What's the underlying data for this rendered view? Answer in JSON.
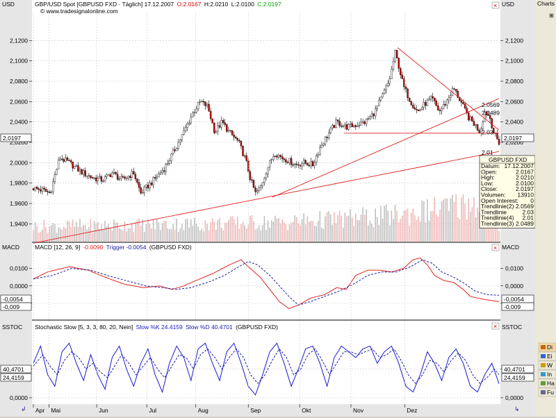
{
  "colors": {
    "up_candle": "#ffffff",
    "down_candle": "#cc0000",
    "candle_outline": "#000000",
    "trendline": "#e02020",
    "volume_up": "#c0c0c0",
    "volume_down": "#f0b8b8",
    "macd_line": "#e02020",
    "macd_trigger": "#1a1aa0",
    "stoch_k": "#1a1ad0",
    "stoch_d": "#1a1aa0",
    "open_color": "#cc0000",
    "close_color": "#00a000"
  },
  "header": {
    "main_title": "GBP/USD Spot [GBPUSD FXD · Täglich] 17.12.2007",
    "open_text": "O:2.0167",
    "high_text": "H:2.0210",
    "low_text": "L:2.0100",
    "close_text": "C:2.0197",
    "copyright": "© www.tradesignalonline.com",
    "axis_label": "USD"
  },
  "macd_header": {
    "label": "MACD",
    "text": "MACD [12, 26, 9]",
    "value_text": "-0.0090",
    "trigger_text": "Trigger -0.0054",
    "source_text": "(GBPUSD FXD)"
  },
  "stoch_header": {
    "label": "SSTOC",
    "text": "Stochastic Slow [5, 3, 3, 80, 20, Nein]",
    "k_text": "Slow %K 24.4159",
    "d_text": "Slow %D 40.4701",
    "source_text": "(GBPUSD FXD)"
  },
  "sidebar": {
    "title": "Charts",
    "tree_toggle": "⊞",
    "items": [
      "Di",
      "Ei",
      "W",
      "In",
      "Ha",
      "Fu"
    ]
  },
  "tags": {
    "price_last": "2,0197",
    "macd_trigger": "-0,0054",
    "macd_value": "-0,009",
    "stoch_d": "40,4701",
    "stoch_k": "24,4159"
  },
  "info_box": {
    "title": "GBPUSD FXD",
    "rows": [
      {
        "label": "Datum:",
        "value": "17.12.2007"
      },
      {
        "label": "Open:",
        "value": "2.0167"
      },
      {
        "label": "High:",
        "value": "2.0210"
      },
      {
        "label": "Low:",
        "value": "2.0100"
      },
      {
        "label": "Close:",
        "value": "2.0197"
      },
      {
        "label": "Volumen:",
        "value": "13910"
      },
      {
        "label": "Open Interest:",
        "value": "0"
      },
      {
        "label": "Trendlinie(2)",
        "value": "2.0569"
      },
      {
        "label": "Trendlinie",
        "value": "2.03"
      },
      {
        "label": "Trendlinie(4)",
        "value": "2.01"
      },
      {
        "label": "Trendlinie(3)",
        "value": "2.0489"
      }
    ]
  },
  "line_labels": [
    {
      "text": "2.0569",
      "value": 2.0569
    },
    {
      "text": "2.0489",
      "value": 2.0489
    },
    {
      "text": "2.03",
      "value": 2.03
    },
    {
      "text": "2.01",
      "value": 2.01
    }
  ],
  "chart_data": {
    "type": "candlestick",
    "x_months": [
      "Apr",
      "Mai",
      "Jun",
      "Jul",
      "Aug",
      "Sep",
      "Okt",
      "Nov",
      "Dez"
    ],
    "price_ticks": [
      "2,1200",
      "2,1000",
      "2,0800",
      "2,0600",
      "2,0400",
      "2,0200",
      "2,0000",
      "1,9800",
      "1,9600",
      "1,9400"
    ],
    "price_tick_values": [
      2.12,
      2.1,
      2.08,
      2.06,
      2.04,
      2.02,
      2.0,
      1.98,
      1.96,
      1.94
    ],
    "price_ylim": [
      1.9225,
      2.1475
    ],
    "price_anchors": [
      [
        0,
        1.975
      ],
      [
        8,
        1.973
      ],
      [
        14,
        1.97
      ],
      [
        22,
        2.005
      ],
      [
        30,
        2.0
      ],
      [
        40,
        1.991
      ],
      [
        50,
        1.985
      ],
      [
        58,
        1.983
      ],
      [
        66,
        1.99
      ],
      [
        74,
        1.983
      ],
      [
        84,
        1.99
      ],
      [
        90,
        1.97
      ],
      [
        100,
        1.982
      ],
      [
        110,
        1.995
      ],
      [
        118,
        2.012
      ],
      [
        126,
        2.03
      ],
      [
        134,
        2.05
      ],
      [
        140,
        2.06
      ],
      [
        146,
        2.055
      ],
      [
        152,
        2.03
      ],
      [
        158,
        2.04
      ],
      [
        164,
        2.03
      ],
      [
        172,
        2.02
      ],
      [
        178,
        2.002
      ],
      [
        182,
        1.983
      ],
      [
        186,
        1.97
      ],
      [
        190,
        1.975
      ],
      [
        196,
        1.995
      ],
      [
        202,
        2.01
      ],
      [
        208,
        2.005
      ],
      [
        214,
        2.002
      ],
      [
        220,
        1.998
      ],
      [
        226,
        2.0
      ],
      [
        234,
        1.998
      ],
      [
        240,
        2.015
      ],
      [
        248,
        2.03
      ],
      [
        254,
        2.04
      ],
      [
        262,
        2.035
      ],
      [
        270,
        2.037
      ],
      [
        278,
        2.04
      ],
      [
        286,
        2.05
      ],
      [
        294,
        2.07
      ],
      [
        298,
        2.08
      ],
      [
        303,
        2.108
      ],
      [
        306,
        2.095
      ],
      [
        310,
        2.075
      ],
      [
        316,
        2.06
      ],
      [
        322,
        2.05
      ],
      [
        328,
        2.058
      ],
      [
        334,
        2.063
      ],
      [
        340,
        2.05
      ],
      [
        346,
        2.06
      ],
      [
        352,
        2.073
      ],
      [
        358,
        2.06
      ],
      [
        364,
        2.045
      ],
      [
        370,
        2.037
      ],
      [
        374,
        2.03
      ],
      [
        378,
        2.05
      ],
      [
        382,
        2.046
      ],
      [
        386,
        2.028
      ],
      [
        390,
        2.0197
      ]
    ],
    "volume_ylim": [
      0,
      50000
    ],
    "volume_anchors": [
      [
        0,
        14000
      ],
      [
        60,
        15000
      ],
      [
        120,
        16000
      ],
      [
        170,
        17000
      ],
      [
        210,
        18000
      ],
      [
        260,
        21000
      ],
      [
        300,
        24000
      ],
      [
        340,
        30000
      ],
      [
        375,
        37000
      ],
      [
        390,
        14000
      ]
    ],
    "trendlines": [
      {
        "from": [
          0,
          1.921
        ],
        "to": [
          390,
          2.011
        ]
      },
      {
        "from": [
          200,
          1.966
        ],
        "to": [
          390,
          2.063
        ]
      },
      {
        "from": [
          260,
          2.029
        ],
        "to": [
          390,
          2.029
        ]
      },
      {
        "from": [
          305,
          2.113
        ],
        "to": [
          390,
          2.032
        ]
      }
    ],
    "macd": {
      "ticks": [
        "0,0100",
        "0,0000",
        "-0,0100"
      ],
      "tick_values": [
        0.01,
        0.0,
        -0.01
      ],
      "ylim": [
        -0.0192,
        0.0198
      ],
      "value_anchors": [
        [
          0,
          0.004
        ],
        [
          12,
          0.008
        ],
        [
          30,
          0.011
        ],
        [
          46,
          0.009
        ],
        [
          60,
          0.005
        ],
        [
          76,
          0.001
        ],
        [
          92,
          -0.001
        ],
        [
          106,
          0.0
        ],
        [
          116,
          -0.002
        ],
        [
          126,
          0.0
        ],
        [
          136,
          0.003
        ],
        [
          150,
          0.007
        ],
        [
          164,
          0.012
        ],
        [
          174,
          0.015
        ],
        [
          180,
          0.011
        ],
        [
          190,
          0.005
        ],
        [
          198,
          -0.002
        ],
        [
          206,
          -0.009
        ],
        [
          214,
          -0.013
        ],
        [
          222,
          -0.011
        ],
        [
          232,
          -0.007
        ],
        [
          244,
          -0.005
        ],
        [
          254,
          -0.001
        ],
        [
          262,
          -0.002
        ],
        [
          270,
          0.006
        ],
        [
          280,
          0.009
        ],
        [
          290,
          0.009
        ],
        [
          300,
          0.008
        ],
        [
          310,
          0.01
        ],
        [
          318,
          0.015
        ],
        [
          324,
          0.016
        ],
        [
          330,
          0.012
        ],
        [
          336,
          0.006
        ],
        [
          344,
          0.003
        ],
        [
          352,
          0.002
        ],
        [
          360,
          -0.002
        ],
        [
          366,
          -0.006
        ],
        [
          372,
          -0.007
        ],
        [
          380,
          -0.008
        ],
        [
          390,
          -0.009
        ]
      ],
      "trigger_anchors": [
        [
          0,
          0.004
        ],
        [
          16,
          0.006
        ],
        [
          32,
          0.01
        ],
        [
          48,
          0.009
        ],
        [
          62,
          0.006
        ],
        [
          78,
          0.003
        ],
        [
          94,
          0.0
        ],
        [
          108,
          -0.001
        ],
        [
          120,
          -0.002
        ],
        [
          132,
          -0.001
        ],
        [
          146,
          0.002
        ],
        [
          160,
          0.006
        ],
        [
          172,
          0.011
        ],
        [
          180,
          0.014
        ],
        [
          188,
          0.012
        ],
        [
          198,
          0.006
        ],
        [
          206,
          0.0
        ],
        [
          214,
          -0.006
        ],
        [
          222,
          -0.011
        ],
        [
          232,
          -0.009
        ],
        [
          244,
          -0.006
        ],
        [
          256,
          -0.003
        ],
        [
          268,
          0.001
        ],
        [
          280,
          0.006
        ],
        [
          292,
          0.008
        ],
        [
          304,
          0.008
        ],
        [
          316,
          0.011
        ],
        [
          326,
          0.015
        ],
        [
          334,
          0.013
        ],
        [
          342,
          0.008
        ],
        [
          352,
          0.005
        ],
        [
          362,
          0.001
        ],
        [
          370,
          -0.003
        ],
        [
          380,
          -0.005
        ],
        [
          390,
          -0.0054
        ]
      ]
    },
    "stochastic": {
      "ticks": [
        "50,0000",
        "0,0000"
      ],
      "tick_values": [
        50,
        0
      ],
      "ylim": [
        -11,
        117
      ],
      "k_anchors": [
        [
          0,
          60
        ],
        [
          6,
          90
        ],
        [
          12,
          40
        ],
        [
          18,
          20
        ],
        [
          24,
          80
        ],
        [
          30,
          95
        ],
        [
          36,
          60
        ],
        [
          42,
          30
        ],
        [
          48,
          75
        ],
        [
          54,
          40
        ],
        [
          60,
          15
        ],
        [
          66,
          70
        ],
        [
          72,
          90
        ],
        [
          78,
          50
        ],
        [
          84,
          20
        ],
        [
          90,
          60
        ],
        [
          96,
          85
        ],
        [
          102,
          40
        ],
        [
          108,
          10
        ],
        [
          114,
          60
        ],
        [
          120,
          90
        ],
        [
          126,
          70
        ],
        [
          132,
          30
        ],
        [
          138,
          85
        ],
        [
          144,
          95
        ],
        [
          150,
          60
        ],
        [
          156,
          30
        ],
        [
          162,
          80
        ],
        [
          168,
          95
        ],
        [
          174,
          60
        ],
        [
          180,
          20
        ],
        [
          186,
          5
        ],
        [
          192,
          40
        ],
        [
          198,
          80
        ],
        [
          204,
          95
        ],
        [
          210,
          60
        ],
        [
          216,
          20
        ],
        [
          222,
          50
        ],
        [
          228,
          85
        ],
        [
          234,
          90
        ],
        [
          240,
          60
        ],
        [
          246,
          20
        ],
        [
          252,
          70
        ],
        [
          258,
          90
        ],
        [
          264,
          80
        ],
        [
          270,
          70
        ],
        [
          276,
          85
        ],
        [
          282,
          90
        ],
        [
          288,
          60
        ],
        [
          294,
          80
        ],
        [
          300,
          90
        ],
        [
          306,
          60
        ],
        [
          312,
          20
        ],
        [
          318,
          10
        ],
        [
          324,
          40
        ],
        [
          330,
          80
        ],
        [
          336,
          60
        ],
        [
          342,
          30
        ],
        [
          348,
          70
        ],
        [
          354,
          85
        ],
        [
          360,
          60
        ],
        [
          366,
          20
        ],
        [
          372,
          10
        ],
        [
          378,
          40
        ],
        [
          384,
          60
        ],
        [
          390,
          24.4159
        ]
      ],
      "d_anchors": [
        [
          0,
          55
        ],
        [
          8,
          75
        ],
        [
          14,
          55
        ],
        [
          20,
          40
        ],
        [
          26,
          65
        ],
        [
          32,
          80
        ],
        [
          38,
          70
        ],
        [
          44,
          50
        ],
        [
          50,
          60
        ],
        [
          56,
          45
        ],
        [
          62,
          35
        ],
        [
          68,
          55
        ],
        [
          74,
          75
        ],
        [
          80,
          60
        ],
        [
          86,
          40
        ],
        [
          92,
          55
        ],
        [
          98,
          70
        ],
        [
          104,
          50
        ],
        [
          110,
          35
        ],
        [
          116,
          55
        ],
        [
          122,
          75
        ],
        [
          128,
          70
        ],
        [
          134,
          50
        ],
        [
          140,
          75
        ],
        [
          146,
          85
        ],
        [
          152,
          70
        ],
        [
          158,
          50
        ],
        [
          164,
          70
        ],
        [
          170,
          85
        ],
        [
          176,
          70
        ],
        [
          182,
          40
        ],
        [
          188,
          25
        ],
        [
          194,
          40
        ],
        [
          200,
          65
        ],
        [
          206,
          85
        ],
        [
          212,
          70
        ],
        [
          218,
          40
        ],
        [
          224,
          50
        ],
        [
          230,
          75
        ],
        [
          236,
          85
        ],
        [
          242,
          65
        ],
        [
          248,
          40
        ],
        [
          254,
          60
        ],
        [
          260,
          80
        ],
        [
          266,
          80
        ],
        [
          272,
          75
        ],
        [
          278,
          80
        ],
        [
          284,
          85
        ],
        [
          290,
          70
        ],
        [
          296,
          75
        ],
        [
          302,
          85
        ],
        [
          308,
          65
        ],
        [
          314,
          40
        ],
        [
          320,
          25
        ],
        [
          326,
          40
        ],
        [
          332,
          65
        ],
        [
          338,
          60
        ],
        [
          344,
          45
        ],
        [
          350,
          65
        ],
        [
          356,
          78
        ],
        [
          362,
          65
        ],
        [
          368,
          40
        ],
        [
          374,
          25
        ],
        [
          380,
          35
        ],
        [
          386,
          50
        ],
        [
          390,
          40.4701
        ]
      ]
    }
  }
}
